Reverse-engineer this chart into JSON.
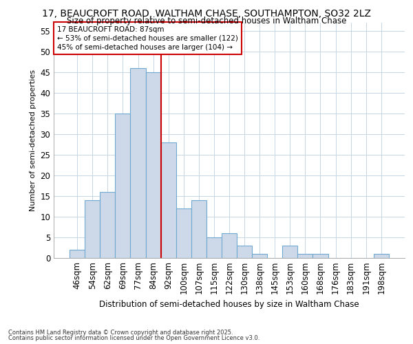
{
  "title1": "17, BEAUCROFT ROAD, WALTHAM CHASE, SOUTHAMPTON, SO32 2LZ",
  "title2": "Size of property relative to semi-detached houses in Waltham Chase",
  "xlabel": "Distribution of semi-detached houses by size in Waltham Chase",
  "ylabel": "Number of semi-detached properties",
  "categories": [
    "46sqm",
    "54sqm",
    "62sqm",
    "69sqm",
    "77sqm",
    "84sqm",
    "92sqm",
    "100sqm",
    "107sqm",
    "115sqm",
    "122sqm",
    "130sqm",
    "138sqm",
    "145sqm",
    "153sqm",
    "160sqm",
    "168sqm",
    "176sqm",
    "183sqm",
    "191sqm",
    "198sqm"
  ],
  "values": [
    2,
    14,
    16,
    35,
    46,
    45,
    28,
    12,
    14,
    5,
    6,
    3,
    1,
    0,
    3,
    1,
    1,
    0,
    0,
    0,
    1
  ],
  "bar_color": "#cdd9e8",
  "bar_edge_color": "#6fa8d0",
  "vline_x": 5.5,
  "annotation_line1": "17 BEAUCROFT ROAD: 87sqm",
  "annotation_line2": "← 53% of semi-detached houses are smaller (122)",
  "annotation_line3": "45% of semi-detached houses are larger (104) →",
  "annotation_box_color": "#ffffff",
  "annotation_box_edge": "#cc0000",
  "vline_color": "#cc0000",
  "footer1": "Contains HM Land Registry data © Crown copyright and database right 2025.",
  "footer2": "Contains public sector information licensed under the Open Government Licence v3.0.",
  "ylim": [
    0,
    57
  ],
  "yticks": [
    0,
    5,
    10,
    15,
    20,
    25,
    30,
    35,
    40,
    45,
    50,
    55
  ],
  "bg_color": "#ffffff",
  "plot_bg_color": "#ffffff",
  "grid_color": "#c5d5e5"
}
